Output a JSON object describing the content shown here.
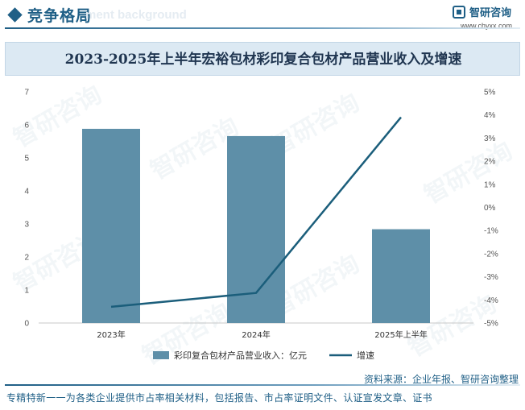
{
  "header": {
    "section_title": "竞争格局",
    "ghost_text": "ment background",
    "logo_name": "智研咨询",
    "logo_url": "www.chyxx.com"
  },
  "watermark_text": "智研咨询",
  "chart_data": {
    "type": "bar",
    "title": "2023-2025年上半年宏裕包材彩印复合包材产品营业收入及增速",
    "categories": [
      "2023年",
      "2024年",
      "2025年上半年"
    ],
    "series": [
      {
        "name": "彩印复合包材产品营业收入：亿元",
        "type": "bar",
        "axis": "left",
        "color": "#5e8fa8",
        "values": [
          5.88,
          5.66,
          2.84
        ]
      },
      {
        "name": "增速",
        "type": "line",
        "axis": "right",
        "color": "#1b5e7b",
        "values": [
          -4.3,
          -3.7,
          3.9
        ]
      }
    ],
    "y_left": {
      "min": 0,
      "max": 7,
      "ticks": [
        "0",
        "1",
        "2",
        "3",
        "4",
        "5",
        "6",
        "7"
      ]
    },
    "y_right": {
      "min": -5,
      "max": 5,
      "ticks": [
        "-5%",
        "-4%",
        "-3%",
        "-2%",
        "-1%",
        "0%",
        "1%",
        "2%",
        "3%",
        "4%",
        "5%"
      ]
    },
    "grid": false,
    "legend_position": "bottom"
  },
  "footer": {
    "source": "资料来源：企业年报、智研咨询整理",
    "tagline": "专精特新一一为各类企业提供市占率相关材料，包括报告、市占率证明文件、认证宣发文章、证书"
  }
}
